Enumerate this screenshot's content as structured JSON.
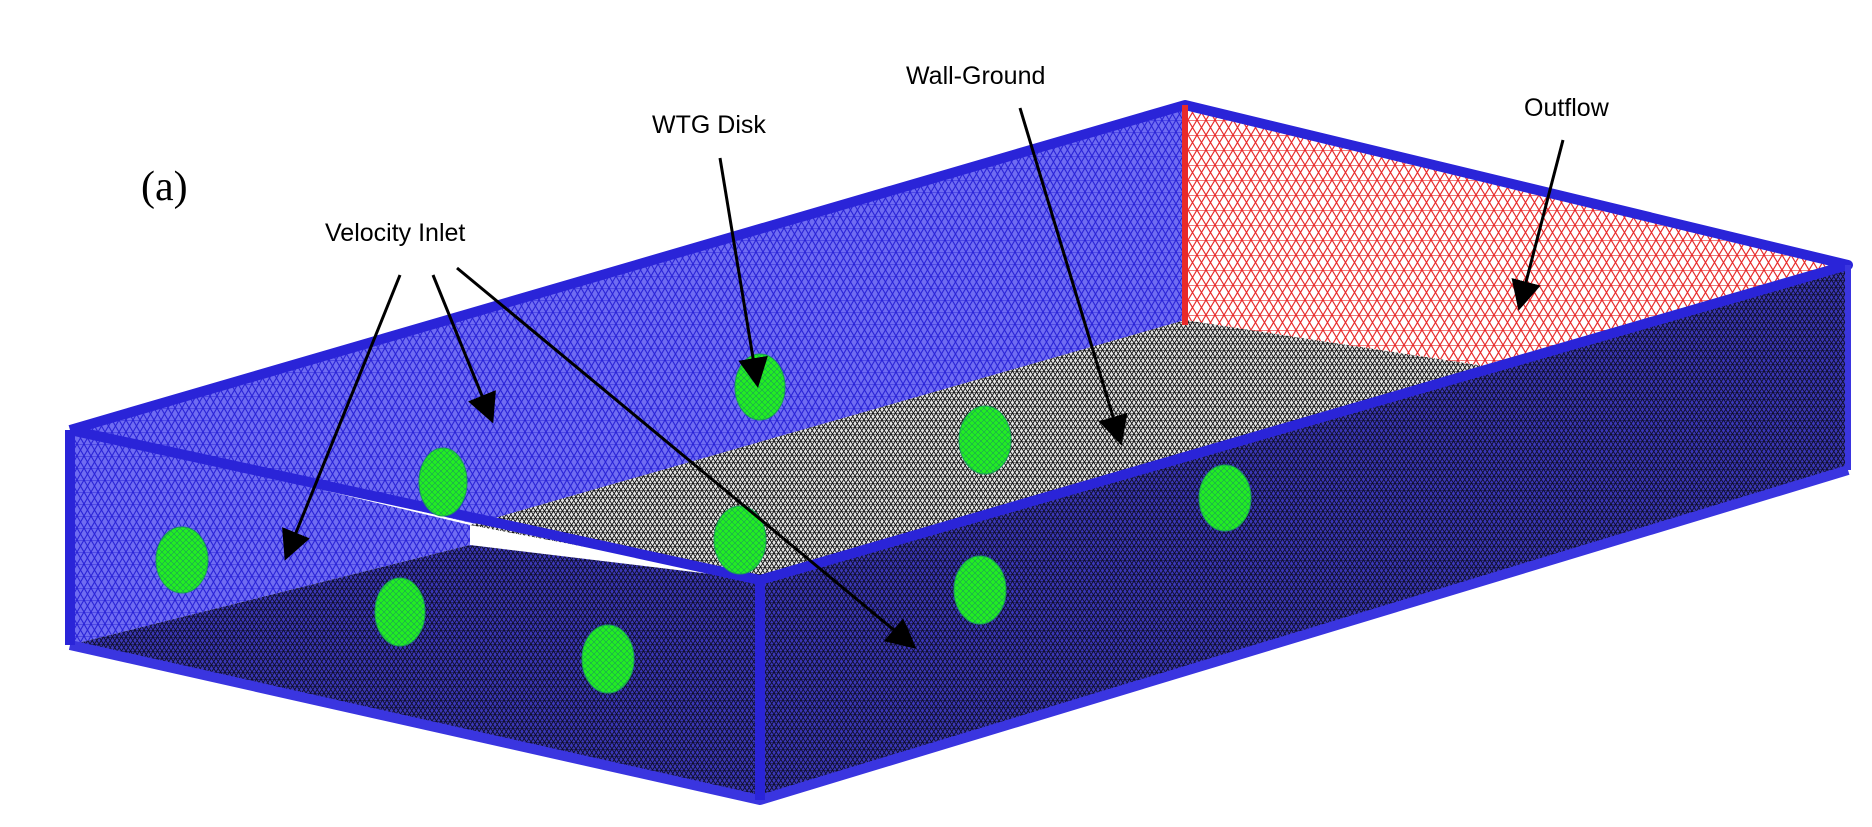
{
  "figure": {
    "panel_label": "(a)",
    "labels": {
      "velocity_inlet": "Velocity Inlet",
      "wtg_disk": "WTG Disk",
      "wall_ground": "Wall-Ground",
      "outflow": "Outflow"
    },
    "colors": {
      "inlet_mesh": "#3a35e0",
      "outflow_mesh": "#e82a2a",
      "ground_mesh": "#111111",
      "disk": "#22ee22",
      "arrow": "#000000"
    },
    "wtg_disk_count": 9
  }
}
